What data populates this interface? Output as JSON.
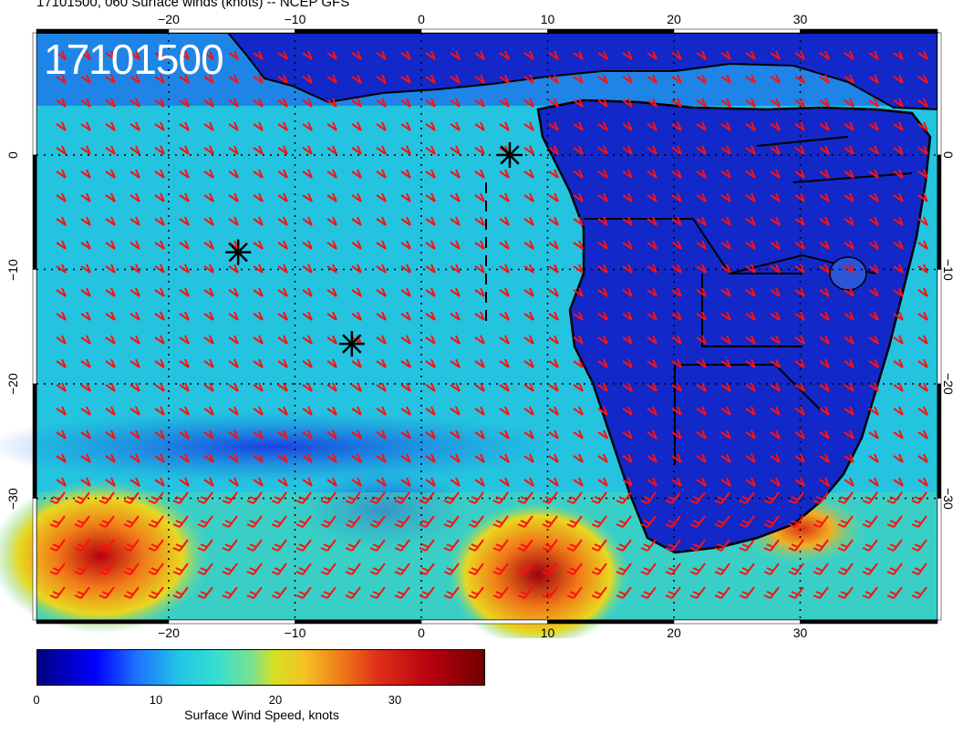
{
  "header": {
    "title": "17101500, 060 Surface winds (knots) -- NCEP GFS"
  },
  "map": {
    "stamp": "17101500",
    "lon_ticks_top": [
      "−20",
      "−10",
      "0",
      "10",
      "20",
      "30"
    ],
    "lon_ticks_bottom": [
      "−20",
      "−10",
      "0",
      "10",
      "20",
      "30"
    ],
    "lat_ticks_left": [
      "0",
      "−10",
      "−20",
      "−30"
    ],
    "lat_ticks_right": [
      "0",
      "−10",
      "−20",
      "−30"
    ],
    "markers": [
      {
        "name": "asterisk-marker-1",
        "lon": 7,
        "lat": 0
      },
      {
        "name": "asterisk-marker-2",
        "lon": -14.5,
        "lat": -8.5
      },
      {
        "name": "asterisk-marker-3",
        "lon": -5.5,
        "lat": -16.5
      }
    ],
    "land_color": "#1020c0",
    "ocean_color": "#20c8e0",
    "barb_color": "#ff1010"
  },
  "colorbar": {
    "tick_labels": [
      "0",
      "10",
      "20",
      "30"
    ],
    "label": "Surface Wind Speed, knots"
  }
}
